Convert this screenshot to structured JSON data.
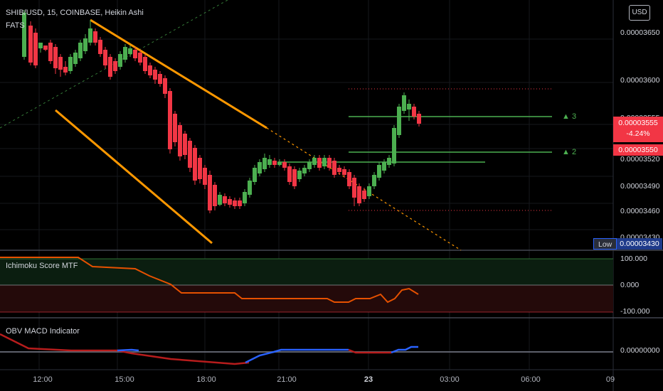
{
  "header": {
    "symbol_title": "SHIB/USD, 15, COINBASE, Heikin Ashi",
    "indicator_label": "FATS",
    "currency_button": "USD"
  },
  "price_axis": {
    "ticks": [
      "0.00003650",
      "0.00003600",
      "0.00003520",
      "0.00003490",
      "0.00003460",
      "0.00003430"
    ],
    "partial_top_tick": "0.00003555",
    "current_price": "0.00003555",
    "change_pct": "-4.24%",
    "second_price": "0.00003550",
    "low_label": "Low",
    "low_value": "0.00003430"
  },
  "targets": [
    {
      "label": "▲ 3"
    },
    {
      "label": "▲ 2"
    }
  ],
  "panes": {
    "ichimoku": {
      "title": "Ichimoku Score MTF",
      "ticks": [
        "100.000",
        "0.000",
        "-100.000"
      ]
    },
    "obv": {
      "title": "OBV MACD Indicator",
      "ticks": [
        "0.00000000"
      ]
    }
  },
  "time_axis": {
    "ticks": [
      {
        "label": "12:00",
        "bold": false
      },
      {
        "label": "15:00",
        "bold": false
      },
      {
        "label": "18:00",
        "bold": false
      },
      {
        "label": "21:00",
        "bold": false
      },
      {
        "label": "23",
        "bold": true
      },
      {
        "label": "03:00",
        "bold": false
      },
      {
        "label": "06:00",
        "bold": false
      },
      {
        "label": "09",
        "bold": false
      }
    ]
  },
  "colors": {
    "up": "#4caf50",
    "down": "#f23645",
    "trendline": "#ff9800",
    "score_line": "#e65100",
    "obv_blue": "#2962ff",
    "obv_red": "#b71c1c"
  }
}
